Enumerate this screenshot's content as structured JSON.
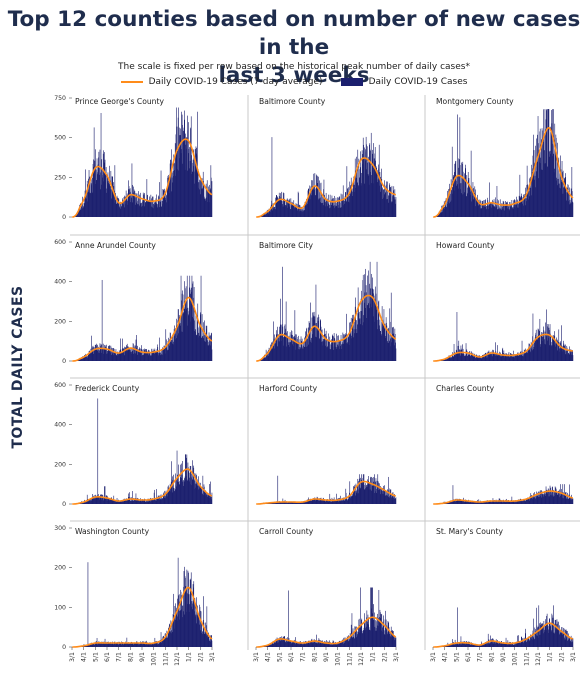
{
  "header": {
    "title_line1": "Top 12 counties based on number of new cases in the",
    "title_line2": "last 3 weeks",
    "subtitle": "The scale is fixed per row based on the historical peak number of daily cases*",
    "legend_line": "Daily COVID-19 Cases (7-day average)",
    "legend_bar": "Daily COVID-19 Cases",
    "y_axis_label": "TOTAL DAILY CASES"
  },
  "colors": {
    "bar": "#1b1f6e",
    "line": "#ff8c1a",
    "title": "#1f2d4d",
    "divider": "#c8c8c8"
  },
  "chart_data": {
    "type": "bar",
    "description_of_axes": "Daily new COVID-19 cases per county (bars) with 7-day average (line); x axis is date from 3/1/2020 to ~3/20/2021",
    "x_tick_labels": [
      "3/1",
      "4/1",
      "5/1",
      "6/1",
      "7/1",
      "8/1",
      "9/1",
      "10/1",
      "11/1",
      "12/1",
      "1/1",
      "2/1",
      "3/1"
    ],
    "rows": [
      {
        "ylim": [
          0,
          750
        ],
        "yticks": [
          0,
          250,
          500,
          750
        ]
      },
      {
        "ylim": [
          0,
          600
        ],
        "yticks": [
          0,
          200,
          400,
          600
        ]
      },
      {
        "ylim": [
          0,
          600
        ],
        "yticks": [
          0,
          200,
          400,
          600
        ]
      },
      {
        "ylim": [
          0,
          300
        ],
        "yticks": [
          0,
          100,
          200,
          300
        ]
      }
    ],
    "panels": [
      {
        "name": "Prince George's County",
        "row": 0,
        "avg_monthly": [
          0,
          110,
          310,
          260,
          90,
          140,
          115,
          100,
          150,
          420,
          480,
          250,
          140
        ],
        "peak_daily": 690
      },
      {
        "name": "Baltimore County",
        "row": 0,
        "avg_monthly": [
          0,
          35,
          110,
          85,
          60,
          195,
          110,
          100,
          150,
          360,
          330,
          190,
          140
        ],
        "peak_daily": 530
      },
      {
        "name": "Montgomery County",
        "row": 0,
        "avg_monthly": [
          0,
          80,
          255,
          210,
          85,
          90,
          75,
          85,
          140,
          380,
          560,
          260,
          120
        ],
        "peak_daily": 680
      },
      {
        "name": "Anne Arundel County",
        "row": 1,
        "avg_monthly": [
          0,
          20,
          60,
          60,
          40,
          65,
          45,
          45,
          70,
          170,
          320,
          180,
          100
        ],
        "peak_daily": 430
      },
      {
        "name": "Baltimore City",
        "row": 1,
        "avg_monthly": [
          0,
          40,
          130,
          110,
          90,
          175,
          110,
          100,
          140,
          300,
          320,
          180,
          110
        ],
        "peak_daily": 500
      },
      {
        "name": "Howard County",
        "row": 1,
        "avg_monthly": [
          0,
          10,
          40,
          40,
          20,
          40,
          30,
          30,
          50,
          120,
          130,
          70,
          50
        ],
        "peak_daily": 260
      },
      {
        "name": "Frederick County",
        "row": 2,
        "avg_monthly": [
          0,
          10,
          35,
          30,
          15,
          25,
          20,
          25,
          50,
          130,
          175,
          90,
          40
        ],
        "peak_daily": 560
      },
      {
        "name": "Harford County",
        "row": 2,
        "avg_monthly": [
          0,
          5,
          10,
          10,
          10,
          25,
          20,
          20,
          40,
          110,
          100,
          70,
          40
        ],
        "peak_daily": 150
      },
      {
        "name": "Charles County",
        "row": 2,
        "avg_monthly": [
          0,
          5,
          20,
          15,
          10,
          15,
          15,
          15,
          25,
          50,
          65,
          55,
          30
        ],
        "peak_daily": 100
      },
      {
        "name": "Washington County",
        "row": 3,
        "avg_monthly": [
          0,
          3,
          10,
          10,
          10,
          10,
          10,
          10,
          25,
          90,
          150,
          70,
          20
        ],
        "peak_daily": 225
      },
      {
        "name": "Carroll County",
        "row": 3,
        "avg_monthly": [
          0,
          5,
          20,
          15,
          10,
          15,
          10,
          10,
          25,
          55,
          75,
          55,
          25
        ],
        "peak_daily": 150
      },
      {
        "name": "St. Mary's County",
        "row": 3,
        "avg_monthly": [
          0,
          3,
          10,
          10,
          5,
          15,
          10,
          10,
          20,
          40,
          60,
          40,
          20
        ],
        "peak_daily": 105
      }
    ]
  }
}
